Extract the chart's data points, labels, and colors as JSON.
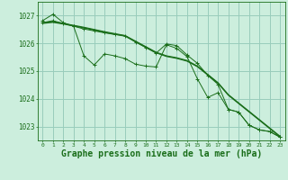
{
  "background_color": "#cceedd",
  "grid_color": "#99ccbb",
  "line_color": "#1a6e1a",
  "xlabel": "Graphe pression niveau de la mer (hPa)",
  "xlabel_fontsize": 7,
  "ylim": [
    1022.5,
    1027.5
  ],
  "xlim": [
    -0.5,
    23.5
  ],
  "yticks": [
    1023,
    1024,
    1025,
    1026,
    1027
  ],
  "xticks": [
    0,
    1,
    2,
    3,
    4,
    5,
    6,
    7,
    8,
    9,
    10,
    11,
    12,
    13,
    14,
    15,
    16,
    17,
    18,
    19,
    20,
    21,
    22,
    23
  ],
  "series1": [
    1026.82,
    1027.05,
    1026.75,
    1026.62,
    1025.55,
    1025.22,
    1025.62,
    1025.55,
    1025.45,
    1025.25,
    1025.18,
    1025.15,
    1025.95,
    1025.82,
    1025.52,
    1024.72,
    1024.05,
    1024.22,
    1023.62,
    1023.52,
    1023.05,
    1022.88,
    1022.82,
    1022.62
  ],
  "series2": [
    1026.75,
    1026.82,
    1026.72,
    1026.62,
    1026.52,
    1026.45,
    1026.38,
    1026.32,
    1026.28,
    1026.05,
    1025.85,
    1025.65,
    1025.98,
    1025.92,
    1025.58,
    1025.28,
    1024.85,
    1024.52,
    1023.62,
    1023.52,
    1023.05,
    1022.88,
    1022.82,
    1022.62
  ],
  "series3": [
    1026.75,
    1026.78,
    1026.72,
    1026.65,
    1026.58,
    1026.5,
    1026.42,
    1026.35,
    1026.28,
    1026.08,
    1025.88,
    1025.68,
    1025.55,
    1025.48,
    1025.38,
    1025.18,
    1024.88,
    1024.58,
    1024.15,
    1023.85,
    1023.55,
    1023.25,
    1022.95,
    1022.65
  ],
  "series4": [
    1026.72,
    1026.76,
    1026.7,
    1026.63,
    1026.56,
    1026.48,
    1026.4,
    1026.33,
    1026.26,
    1026.06,
    1025.86,
    1025.66,
    1025.53,
    1025.46,
    1025.36,
    1025.16,
    1024.86,
    1024.56,
    1024.13,
    1023.83,
    1023.53,
    1023.23,
    1022.93,
    1022.63
  ]
}
